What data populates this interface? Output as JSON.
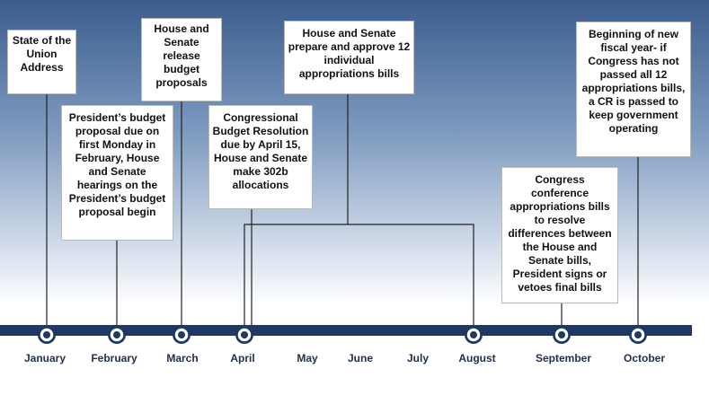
{
  "events": [
    {
      "label": "State of the Union Address"
    },
    {
      "label": "President’s budget proposal due on first Monday in February, House and Senate hearings on the President’s budget proposal begin"
    },
    {
      "label": "House and Senate release budget proposals"
    },
    {
      "label": "Congressional Budget Resolution due by April 15, House and Senate make 302b allocations"
    },
    {
      "label": "House and Senate prepare and approve 12 individual appropriations bills"
    },
    {
      "label": "Congress conference appropriations bills to resolve differences between the House and Senate bills, President signs or vetoes final bills"
    },
    {
      "label": "Beginning of new fiscal year- if Congress has not passed all 12 appropriations bills, a CR is passed to keep government operating"
    }
  ],
  "months": [
    "January",
    "February",
    "March",
    "April",
    "May",
    "June",
    "July",
    "August",
    "September",
    "October"
  ]
}
